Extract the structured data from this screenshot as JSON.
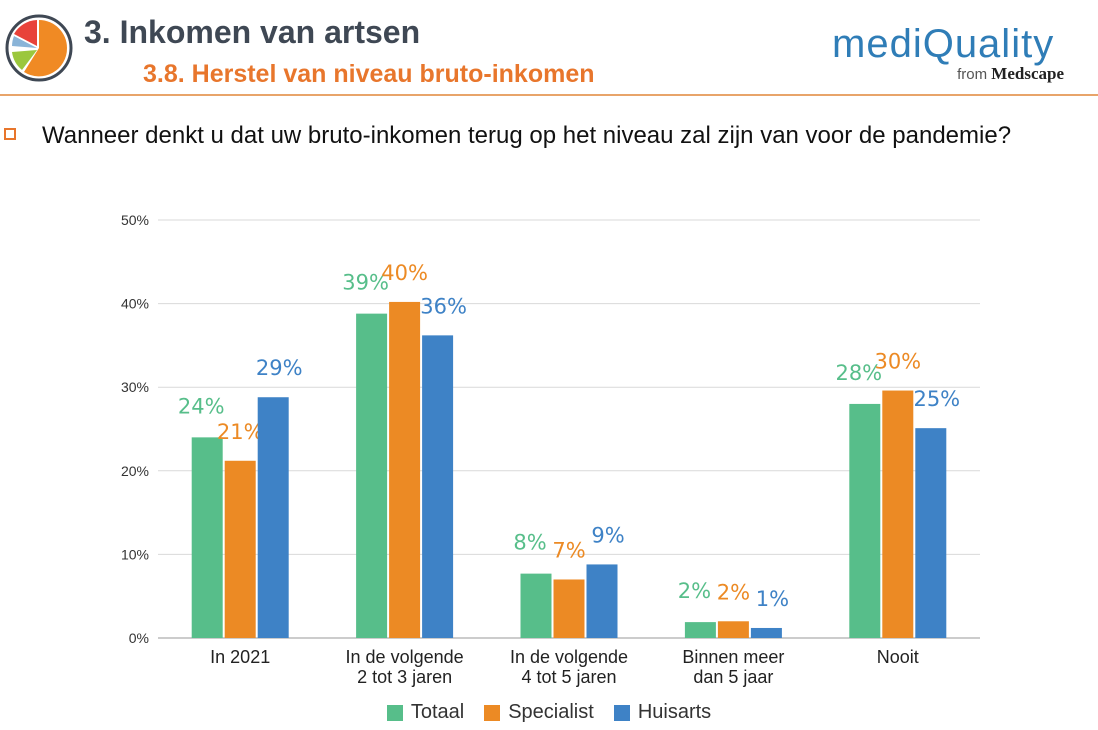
{
  "header": {
    "title": "3. Inkomen van artsen",
    "subtitle": "3.8. Herstel van niveau bruto-inkomen"
  },
  "brand": {
    "name": "mediQuality",
    "from_label": "from",
    "from_brand": "Medscape"
  },
  "question": "Wanneer denkt u dat uw bruto-inkomen terug op het niveau zal zijn van voor de pandemie?",
  "colors": {
    "totaal": "#57be8a",
    "specialist": "#ec8a24",
    "huisarts": "#3e82c6",
    "title_orange": "#e8762c",
    "title_gray": "#3f4854"
  },
  "chart_data": {
    "type": "bar",
    "categories": [
      [
        "In 2021"
      ],
      [
        "In de volgende",
        "2 tot 3 jaren"
      ],
      [
        "In de volgende",
        "4 tot 5 jaren"
      ],
      [
        "Binnen meer",
        "dan 5 jaar"
      ],
      [
        "Nooit"
      ]
    ],
    "series": [
      {
        "name": "Totaal",
        "color": "#57be8a",
        "values": [
          24,
          38.8,
          7.7,
          1.9,
          28
        ],
        "labels": [
          "24%",
          "39%",
          "8%",
          "2%",
          "28%"
        ]
      },
      {
        "name": "Specialist",
        "color": "#ec8a24",
        "values": [
          21.2,
          40.2,
          7.0,
          2.0,
          29.6
        ],
        "labels": [
          "21%",
          "40%",
          "7%",
          "2%",
          "30%"
        ]
      },
      {
        "name": "Huisarts",
        "color": "#3e82c6",
        "values": [
          28.8,
          36.2,
          8.8,
          1.2,
          25.1
        ],
        "labels": [
          "29%",
          "36%",
          "9%",
          "1%",
          "25%"
        ]
      }
    ],
    "yticks": [
      "0%",
      "10%",
      "20%",
      "30%",
      "40%",
      "50%"
    ],
    "ylim": [
      0,
      50
    ],
    "title": "",
    "xlabel": "",
    "ylabel": "",
    "grid": true,
    "legend_position": "bottom"
  }
}
